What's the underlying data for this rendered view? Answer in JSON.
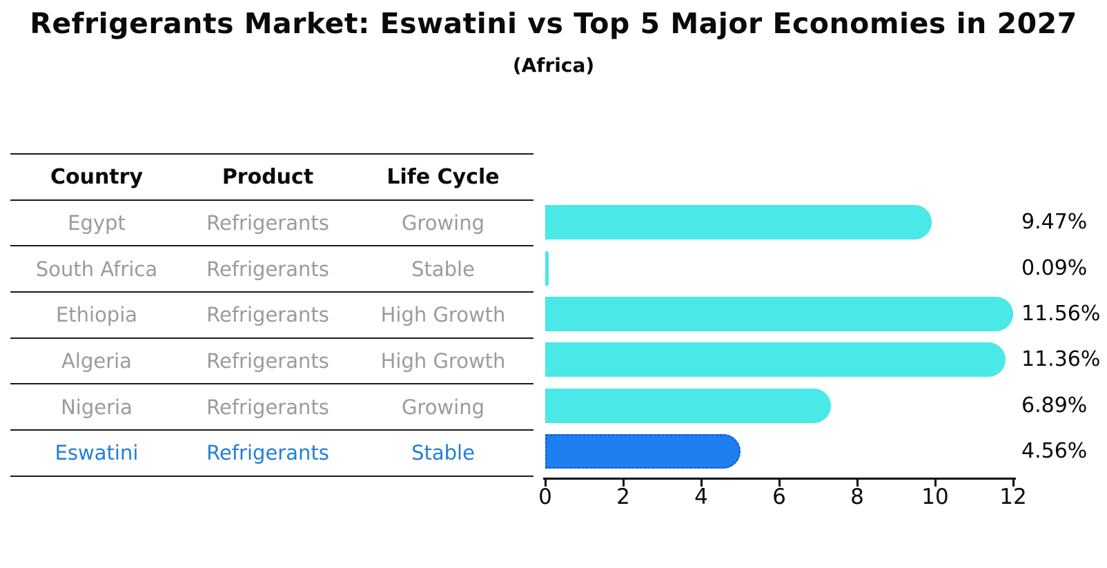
{
  "title": "Refrigerants Market: Eswatini vs Top 5 Major Economies in 2027",
  "subtitle": "(Africa)",
  "table": {
    "headers": [
      "Country",
      "Product",
      "Life Cycle"
    ]
  },
  "rows": [
    {
      "country": "Egypt",
      "product": "Refrigerants",
      "life_cycle": "Growing",
      "share_label": "9.47%",
      "value": 9.47,
      "highlight": false
    },
    {
      "country": "South Africa",
      "product": "Refrigerants",
      "life_cycle": "Stable",
      "share_label": "0.09%",
      "value": 0.09,
      "highlight": false
    },
    {
      "country": "Ethiopia",
      "product": "Refrigerants",
      "life_cycle": "High Growth",
      "share_label": "11.56%",
      "value": 11.56,
      "highlight": false
    },
    {
      "country": "Algeria",
      "product": "Refrigerants",
      "life_cycle": "High Growth",
      "share_label": "11.36%",
      "value": 11.36,
      "highlight": false
    },
    {
      "country": "Nigeria",
      "product": "Refrigerants",
      "life_cycle": "Growing",
      "share_label": "6.89%",
      "value": 6.89,
      "highlight": false
    },
    {
      "country": "Eswatini",
      "product": "Refrigerants",
      "life_cycle": "Stable",
      "share_label": "4.56%",
      "value": 4.56,
      "highlight": true
    }
  ],
  "axis": {
    "ticks": [
      "0",
      "2",
      "4",
      "6",
      "8",
      "10",
      "12"
    ]
  },
  "chart_data": {
    "type": "bar",
    "orientation": "horizontal",
    "title": "Refrigerants Market: Eswatini vs Top 5 Major Economies in 2027",
    "subtitle": "(Africa)",
    "categories": [
      "Egypt",
      "South Africa",
      "Ethiopia",
      "Algeria",
      "Nigeria",
      "Eswatini"
    ],
    "values": [
      9.47,
      0.09,
      11.56,
      11.36,
      6.89,
      4.56
    ],
    "value_labels": [
      "9.47%",
      "0.09%",
      "11.56%",
      "11.36%",
      "6.89%",
      "4.56%"
    ],
    "xlabel": "",
    "ylabel": "",
    "xlim": [
      0,
      12
    ],
    "xticks": [
      0,
      2,
      4,
      6,
      8,
      10,
      12
    ],
    "grid": false,
    "legend": false,
    "bar_color": "#4AE8E6",
    "highlight_color": "#1E80F0",
    "highlight_index": 5,
    "text_color_muted": "#9b9b9b",
    "text_color_highlight": "#2080d8"
  }
}
